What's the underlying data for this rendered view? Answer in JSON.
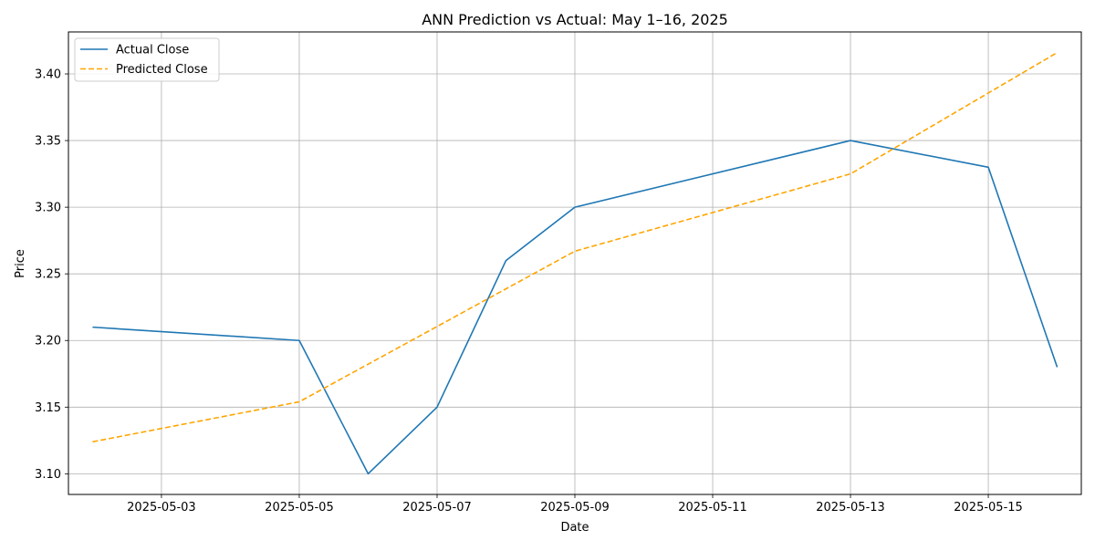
{
  "chart_data": {
    "type": "line",
    "title": "ANN Prediction vs Actual: May 1–16, 2025",
    "xlabel": "Date",
    "ylabel": "Price",
    "x_tick_labels": [
      "2025-05-03",
      "2025-05-05",
      "2025-05-07",
      "2025-05-09",
      "2025-05-11",
      "2025-05-13",
      "2025-05-15"
    ],
    "x_ticks": [
      "2025-05-03",
      "2025-05-05",
      "2025-05-07",
      "2025-05-09",
      "2025-05-11",
      "2025-05-13",
      "2025-05-15"
    ],
    "y_ticks": [
      3.1,
      3.15,
      3.2,
      3.25,
      3.3,
      3.35,
      3.4
    ],
    "y_tick_labels": [
      "3.10",
      "3.15",
      "3.20",
      "3.25",
      "3.30",
      "3.35",
      "3.40"
    ],
    "xlim": [
      "2025-05-01T15:36:00",
      "2025-05-16T08:24:00"
    ],
    "ylim": [
      3.0845,
      3.4315
    ],
    "grid": true,
    "legend_position": "top-left",
    "series": [
      {
        "name": "Actual Close",
        "color": "#1f77b4",
        "style": "solid",
        "x": [
          "2025-05-02",
          "2025-05-05",
          "2025-05-06",
          "2025-05-07",
          "2025-05-08",
          "2025-05-09",
          "2025-05-13",
          "2025-05-15",
          "2025-05-16"
        ],
        "values": [
          3.21,
          3.2,
          3.1,
          3.15,
          3.26,
          3.3,
          3.35,
          3.33,
          3.18
        ]
      },
      {
        "name": "Predicted Close",
        "color": "#ffa500",
        "style": "dashed",
        "x": [
          "2025-05-02",
          "2025-05-05",
          "2025-05-09",
          "2025-05-13",
          "2025-05-16"
        ],
        "values": [
          3.124,
          3.154,
          3.267,
          3.325,
          3.416
        ]
      }
    ]
  }
}
